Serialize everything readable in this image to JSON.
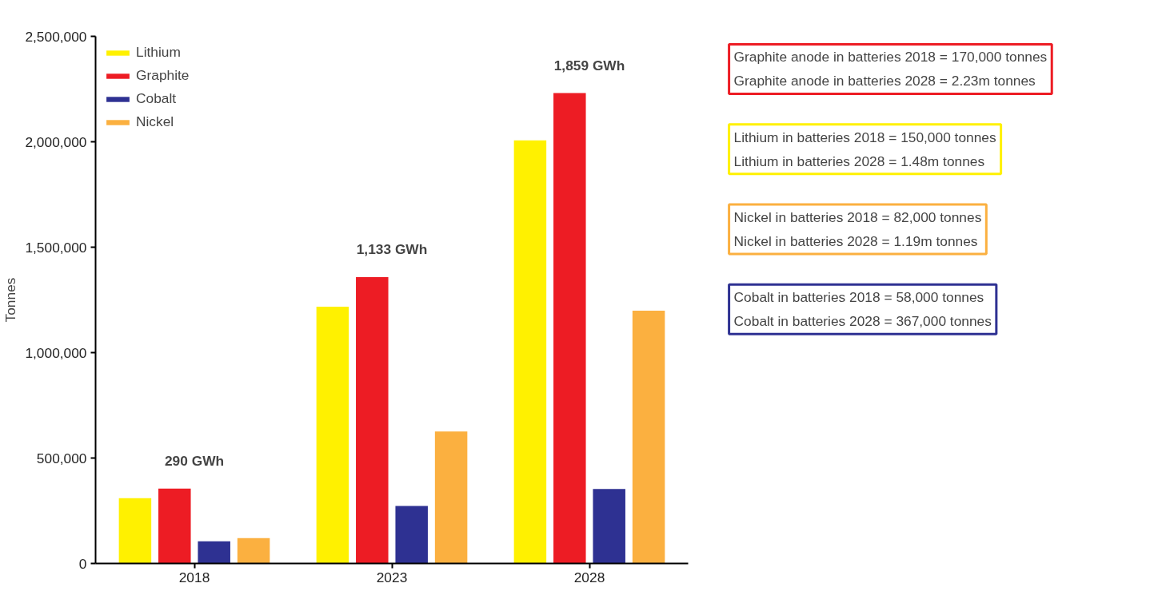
{
  "chart_data": {
    "type": "bar",
    "ylabel": "Tonnes",
    "categories": [
      "2018",
      "2023",
      "2028"
    ],
    "series": [
      {
        "name": "Lithium",
        "color": "#fff100",
        "values": [
          310000,
          1218000,
          2007000
        ]
      },
      {
        "name": "Graphite",
        "color": "#ed1c24",
        "values": [
          355000,
          1358000,
          2231000
        ]
      },
      {
        "name": "Cobalt",
        "color": "#2e3192",
        "values": [
          105000,
          273000,
          353000
        ]
      },
      {
        "name": "Nickel",
        "color": "#fbb040",
        "values": [
          120000,
          626000,
          1199000
        ]
      }
    ],
    "ylim": [
      0,
      2500000
    ],
    "yticks": [
      {
        "value": 0,
        "label": "0"
      },
      {
        "value": 500000,
        "label": "500,000"
      },
      {
        "value": 1000000,
        "label": "1,000,000"
      },
      {
        "value": 1500000,
        "label": "1,500,000"
      },
      {
        "value": 2000000,
        "label": "2,000,000"
      },
      {
        "value": 2500000,
        "label": "2,500,000"
      }
    ],
    "grid": false,
    "legend": "top left",
    "annotations": [
      "290 GWh",
      "1,133 GWh",
      "1,859 GWh",
      "Graphite anode in batteries 2018 = 170,000 tonnes\nGraphite anode in batteries 2028 = 2.23m tonnes",
      "Lithium in batteries 2018 = 150,000 tonnes\nLithium in batteries 2028 = 1.48m tonnes",
      "Nickel in batteries 2018 = 82,000 tonnes\nNickel in batteries 2028 = 1.19m tonnes",
      "Cobalt in batteries 2018 = 58,000 tonnes\nCobalt in batteries 2028 = 367,000 tonnes"
    ]
  }
}
